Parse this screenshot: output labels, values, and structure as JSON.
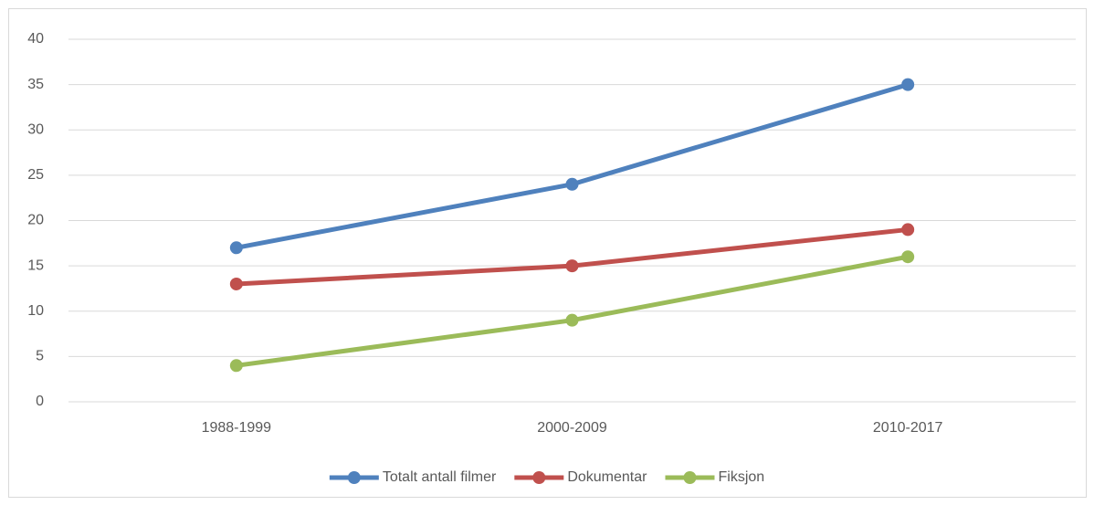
{
  "chart_data": {
    "type": "line",
    "categories": [
      "1988-1999",
      "2000-2009",
      "2010-2017"
    ],
    "series": [
      {
        "name": "Totalt antall filmer",
        "color": "#4f81bd",
        "values": [
          17,
          24,
          35
        ]
      },
      {
        "name": "Dokumentar",
        "color": "#c0504d",
        "values": [
          13,
          15,
          19
        ]
      },
      {
        "name": "Fiksjon",
        "color": "#9bbb59",
        "values": [
          4,
          9,
          16
        ]
      }
    ],
    "ylim": [
      0,
      40
    ],
    "yticks": [
      0,
      5,
      10,
      15,
      20,
      25,
      30,
      35,
      40
    ],
    "grid": true,
    "legend": "bottom"
  }
}
